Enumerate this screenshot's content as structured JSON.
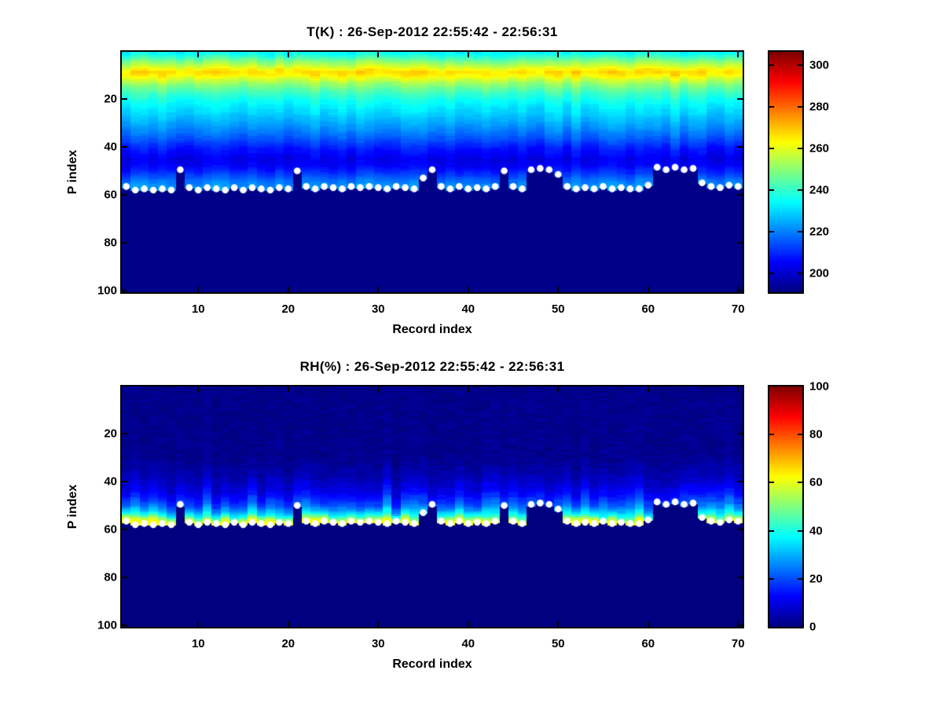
{
  "figure": {
    "background": "#ffffff",
    "accent_navy": "#000083",
    "marker_color": "#ffffff"
  },
  "panels": [
    {
      "name": "temperature",
      "title": "T(K) : 26-Sep-2012 22:55:42 - 22:56:31",
      "xlabel": "Record index",
      "ylabel": "P index"
    },
    {
      "name": "relative-humidity",
      "title": "RH(%) : 26-Sep-2012 22:55:42 - 22:56:31",
      "xlabel": "Record index",
      "ylabel": "P index"
    }
  ],
  "chart_data": [
    {
      "type": "heatmap",
      "title": "T(K) : 26-Sep-2012 22:55:42 - 22:56:31",
      "xlabel": "Record index",
      "ylabel": "P index",
      "colormap": "jet",
      "x_range": [
        1.5,
        70.5
      ],
      "y_range": [
        0.5,
        100.5
      ],
      "y_direction": "reverse",
      "x_ticks": [
        10,
        20,
        30,
        40,
        50,
        60,
        70
      ],
      "y_ticks": [
        20,
        40,
        60,
        80,
        100
      ],
      "color_range": [
        191,
        306.5
      ],
      "colorbar_ticks": [
        200,
        220,
        240,
        260,
        280,
        300
      ],
      "vertical_profile": {
        "p": [
          1,
          3,
          5,
          7,
          9,
          11,
          13,
          15,
          18,
          21,
          25,
          29,
          33,
          37,
          41,
          45,
          48,
          51,
          54,
          57,
          58
        ],
        "value": [
          234,
          242,
          251,
          259,
          268,
          262,
          254,
          248,
          241,
          236,
          231,
          226,
          221,
          215,
          208,
          203,
          205,
          211,
          218,
          223,
          223
        ]
      },
      "below_surface_value": 192,
      "column_noise": {
        "value_amp": 2.5,
        "value_rel": 0,
        "p_shift_amp": 0.6
      },
      "cell_noise": 1.0,
      "surface_line": {
        "marker": "white-circle",
        "records": [
          2,
          3,
          4,
          5,
          6,
          7,
          8,
          9,
          10,
          11,
          12,
          13,
          14,
          15,
          16,
          17,
          18,
          19,
          20,
          21,
          22,
          23,
          24,
          25,
          26,
          27,
          28,
          29,
          30,
          31,
          32,
          33,
          34,
          35,
          36,
          37,
          38,
          39,
          40,
          41,
          42,
          43,
          44,
          45,
          46,
          47,
          48,
          49,
          50,
          51,
          52,
          53,
          54,
          55,
          56,
          57,
          58,
          59,
          60,
          61,
          62,
          63,
          64,
          65,
          66,
          67,
          68,
          69,
          70
        ],
        "p": [
          56.5,
          58,
          57.5,
          58,
          57.5,
          58,
          49.5,
          57,
          58,
          57,
          57.5,
          58,
          57,
          58,
          57,
          57.5,
          58,
          57,
          57.5,
          50,
          56.5,
          57.5,
          56.5,
          57,
          57.5,
          56.5,
          57,
          56.5,
          57,
          57.5,
          56.5,
          57,
          57.5,
          53,
          49.5,
          56.5,
          57.5,
          56.5,
          57.5,
          57,
          57.5,
          56.5,
          50,
          56.5,
          57.5,
          49.5,
          49,
          49.5,
          51.5,
          56.5,
          57.5,
          57,
          57.5,
          56.5,
          57.5,
          57,
          57.5,
          57.5,
          56,
          48.5,
          49.5,
          48.5,
          49.5,
          49,
          55,
          56.5,
          57,
          56,
          56.5
        ]
      }
    },
    {
      "type": "heatmap",
      "title": "RH(%) : 26-Sep-2012 22:55:42 - 22:56:31",
      "xlabel": "Record index",
      "ylabel": "P index",
      "colormap": "jet",
      "x_range": [
        1.5,
        70.5
      ],
      "y_range": [
        0.5,
        100.5
      ],
      "y_direction": "reverse",
      "x_ticks": [
        10,
        20,
        30,
        40,
        50,
        60,
        70
      ],
      "y_ticks": [
        20,
        40,
        60,
        80,
        100
      ],
      "color_range": [
        0,
        100
      ],
      "colorbar_ticks": [
        0,
        20,
        40,
        60,
        80,
        100
      ],
      "vertical_profile": {
        "p": [
          1,
          30,
          36,
          40,
          44,
          47,
          50,
          52,
          54,
          55.5,
          57,
          58
        ],
        "value": [
          1,
          1.5,
          4,
          7,
          11,
          16,
          22,
          29,
          38,
          50,
          62,
          62
        ]
      },
      "below_surface_value": 0,
      "column_noise": {
        "value_amp": 0,
        "value_rel": 0.45,
        "p_shift_amp": 1.2
      },
      "cell_noise": 1.5,
      "surface_line": {
        "marker": "white-circle",
        "records": [
          2,
          3,
          4,
          5,
          6,
          7,
          8,
          9,
          10,
          11,
          12,
          13,
          14,
          15,
          16,
          17,
          18,
          19,
          20,
          21,
          22,
          23,
          24,
          25,
          26,
          27,
          28,
          29,
          30,
          31,
          32,
          33,
          34,
          35,
          36,
          37,
          38,
          39,
          40,
          41,
          42,
          43,
          44,
          45,
          46,
          47,
          48,
          49,
          50,
          51,
          52,
          53,
          54,
          55,
          56,
          57,
          58,
          59,
          60,
          61,
          62,
          63,
          64,
          65,
          66,
          67,
          68,
          69,
          70
        ],
        "p": [
          56.5,
          58,
          57.5,
          58,
          57.5,
          58,
          49.5,
          57,
          58,
          57,
          57.5,
          58,
          57,
          58,
          57,
          57.5,
          58,
          57,
          57.5,
          50,
          56.5,
          57.5,
          56.5,
          57,
          57.5,
          56.5,
          57,
          56.5,
          57,
          57.5,
          56.5,
          57,
          57.5,
          53,
          49.5,
          56.5,
          57.5,
          56.5,
          57.5,
          57,
          57.5,
          56.5,
          50,
          56.5,
          57.5,
          49.5,
          49,
          49.5,
          51.5,
          56.5,
          57.5,
          57,
          57.5,
          56.5,
          57.5,
          57,
          57.5,
          57.5,
          56,
          48.5,
          49.5,
          48.5,
          49.5,
          49,
          55,
          56.5,
          57,
          56,
          56.5
        ]
      }
    }
  ]
}
